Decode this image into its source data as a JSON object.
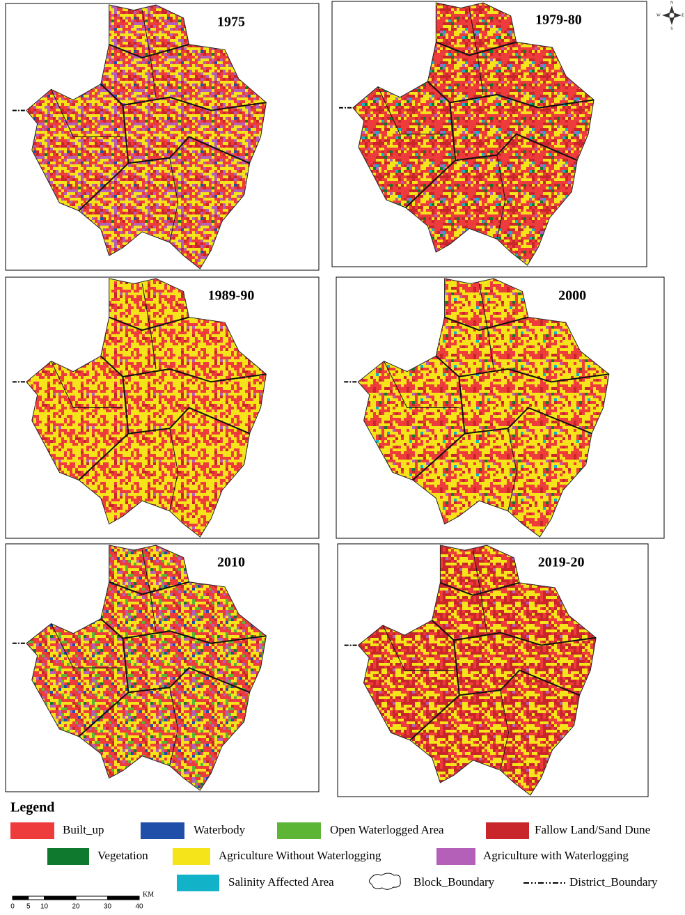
{
  "panels": [
    {
      "title": "1975"
    },
    {
      "title": "1979-80"
    },
    {
      "title": "1989-90"
    },
    {
      "title": "2000"
    },
    {
      "title": "2010"
    },
    {
      "title": "2019-20"
    }
  ],
  "legend": {
    "title": "Legend",
    "items": [
      {
        "label": "Built_up",
        "color": "#ee3b3b"
      },
      {
        "label": "Waterbody",
        "color": "#1f4fa8"
      },
      {
        "label": "Open Waterlogged Area",
        "color": "#5cb534"
      },
      {
        "label": "Fallow Land/Sand Dune",
        "color": "#c8262a"
      },
      {
        "label": "Vegetation",
        "color": "#0f7a2e"
      },
      {
        "label": "Agriculture Without Waterlogging",
        "color": "#f5e41a"
      },
      {
        "label": "Agriculture with Waterlogging",
        "color": "#b45fb8"
      },
      {
        "label": "Salinity Affected Area",
        "color": "#12b3c9"
      },
      {
        "label": "Block_Boundary"
      },
      {
        "label": "District_Boundary"
      }
    ]
  },
  "scale_bar": {
    "ticks": [
      "0",
      "5",
      "10",
      "20",
      "30",
      "40"
    ],
    "unit": "KM"
  },
  "compass": {
    "n": "N",
    "e": "E",
    "s": "S",
    "w": "W"
  }
}
